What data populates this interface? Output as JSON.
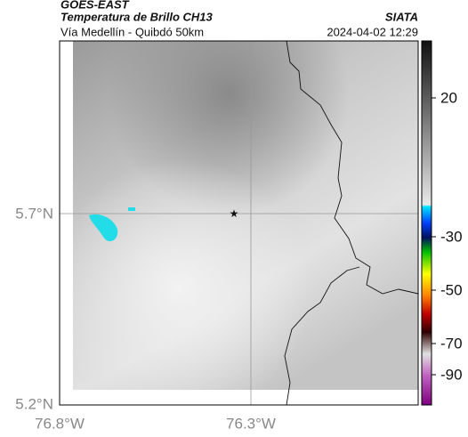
{
  "header": {
    "source": "GOES-EAST",
    "product": "Temperatura de Brillo CH13",
    "org": "SIATA",
    "route": "Vía Medellín - Quibdó 50km",
    "timestamp": "2024-04-02 12:29"
  },
  "map": {
    "lat_labels": [
      "5.7°N",
      "5.2°N"
    ],
    "lon_labels": [
      "76.8°W",
      "76.3°W"
    ]
  },
  "colorbar": {
    "ticks": [
      "20",
      "-30",
      "-50",
      "-70",
      "-90"
    ]
  }
}
